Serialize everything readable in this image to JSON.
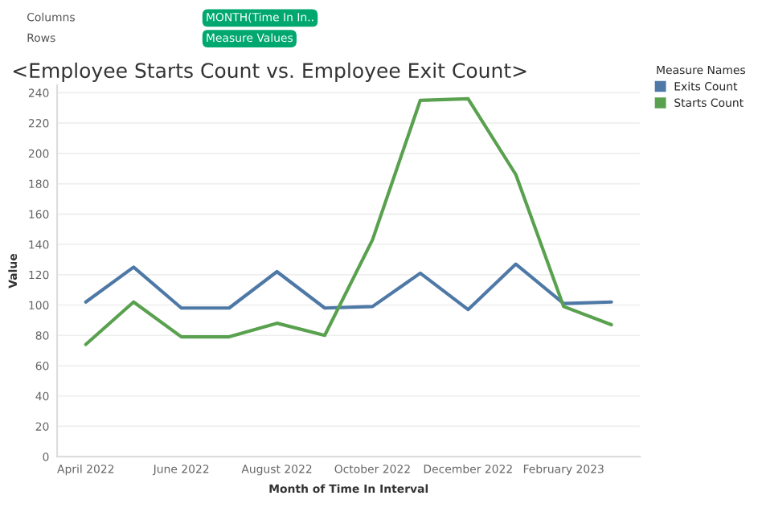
{
  "chart_data": {
    "type": "line",
    "title": "<Employee Starts Count vs. Employee Exit Count>",
    "xlabel": "Month of Time In Interval",
    "ylabel": "Value",
    "legend_title": "Measure Names",
    "annotations": [
      "Columns",
      "MONTH(Time In In..",
      "Rows",
      "Measure Values"
    ],
    "categories": [
      "April 2022",
      null,
      "June 2022",
      null,
      "August 2022",
      null,
      "October 2022",
      null,
      "December 2022",
      null,
      "February 2023",
      null
    ],
    "series": [
      {
        "name": "Exits Count",
        "color": "#4e79a7",
        "values": [
          102,
          125,
          98,
          98,
          122,
          98,
          99,
          121,
          97,
          127,
          101,
          102
        ]
      },
      {
        "name": "Starts Count",
        "color": "#59a14f",
        "values": [
          74,
          102,
          79,
          79,
          88,
          80,
          143,
          235,
          236,
          186,
          99,
          87
        ]
      }
    ],
    "ylim": [
      0,
      245
    ],
    "yticks": [
      0,
      20,
      40,
      60,
      80,
      100,
      120,
      140,
      160,
      180,
      200,
      220,
      240
    ],
    "grid": "y",
    "legend": "right",
    "marker": "none",
    "line_style": "solid"
  }
}
